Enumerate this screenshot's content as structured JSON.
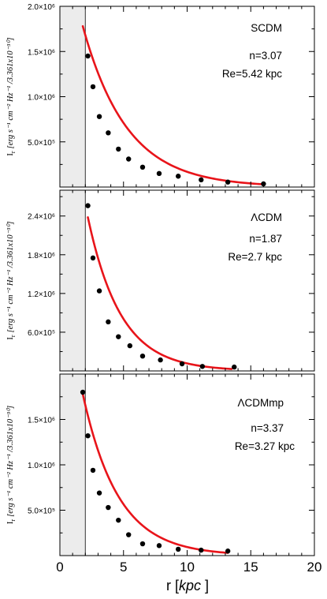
{
  "chart_data": [
    {
      "type": "scatter",
      "panel": "top",
      "model": "SCDM",
      "n_text": "n=3.07",
      "re_text": "Re=5.42 kpc",
      "ylabel_main": "I",
      "ylabel_sub": "r",
      "ylabel_units": "[erg s⁻¹ cm⁻² Hz⁻¹ /3.361x10⁻³⁰]",
      "ylim": [
        0,
        2000000
      ],
      "yticks": [
        500000,
        1000000,
        1500000,
        2000000
      ],
      "ytick_labels": [
        "5.0×10⁵",
        "1.0×10⁶",
        "1.5×10⁶",
        "2.0×10⁶"
      ],
      "xlim": [
        0,
        20
      ],
      "excluded_region": [
        0,
        2
      ],
      "points": [
        {
          "x": 2.2,
          "y": 1450000
        },
        {
          "x": 2.6,
          "y": 1110000
        },
        {
          "x": 3.1,
          "y": 780000
        },
        {
          "x": 3.8,
          "y": 600000
        },
        {
          "x": 4.6,
          "y": 420000
        },
        {
          "x": 5.4,
          "y": 310000
        },
        {
          "x": 6.5,
          "y": 220000
        },
        {
          "x": 7.8,
          "y": 150000
        },
        {
          "x": 9.3,
          "y": 120000
        },
        {
          "x": 11.1,
          "y": 80000
        },
        {
          "x": 13.2,
          "y": 55000
        },
        {
          "x": 16.0,
          "y": 35000
        }
      ],
      "fit": {
        "x_start": 1.8,
        "x_end": 16.0,
        "y_start": 1780000,
        "y_end": 30000
      }
    },
    {
      "type": "scatter",
      "panel": "middle",
      "model": "ΛCDM",
      "n_text": "n=1.87",
      "re_text": "Re=2.7 kpc",
      "ylabel_main": "I",
      "ylabel_sub": "r",
      "ylabel_units": "[erg s⁻¹ cm⁻² Hz⁻¹ /3.361x10⁻³⁰]",
      "ylim": [
        0,
        2800000
      ],
      "yticks": [
        600000,
        1200000,
        1800000,
        2400000
      ],
      "ytick_labels": [
        "6.0×10⁵",
        "1.2×10⁶",
        "1.8×10⁶",
        "2.4×10⁶"
      ],
      "xlim": [
        0,
        20
      ],
      "excluded_region": [
        0,
        2
      ],
      "points": [
        {
          "x": 2.2,
          "y": 2560000
        },
        {
          "x": 2.6,
          "y": 1750000
        },
        {
          "x": 3.1,
          "y": 1240000
        },
        {
          "x": 3.8,
          "y": 760000
        },
        {
          "x": 4.6,
          "y": 530000
        },
        {
          "x": 5.5,
          "y": 390000
        },
        {
          "x": 6.5,
          "y": 230000
        },
        {
          "x": 7.9,
          "y": 170000
        },
        {
          "x": 9.6,
          "y": 110000
        },
        {
          "x": 11.2,
          "y": 70000
        },
        {
          "x": 13.7,
          "y": 60000
        }
      ],
      "fit": {
        "x_start": 2.2,
        "x_end": 13.5,
        "y_start": 2380000,
        "y_end": 30000
      }
    },
    {
      "type": "scatter",
      "panel": "bottom",
      "model": "ΛCDMmp",
      "n_text": "n=3.37",
      "re_text": "Re=3.27 kpc",
      "ylabel_main": "I",
      "ylabel_sub": "r",
      "ylabel_units": "[erg s⁻¹ cm⁻² Hz⁻¹ /3.361x10⁻³⁰]",
      "ylim": [
        0,
        2000000
      ],
      "yticks": [
        500000,
        1000000,
        1500000
      ],
      "ytick_labels": [
        "5.0×10⁵",
        "1.0×10⁶",
        "1.5×10⁶"
      ],
      "xlim": [
        0,
        20
      ],
      "xticks": [
        0,
        5,
        10,
        15,
        20
      ],
      "xtick_labels": [
        "0",
        "5",
        "10",
        "15",
        "20"
      ],
      "xlabel": "r",
      "xlabel_unit": "kpc",
      "excluded_region": [
        0,
        2
      ],
      "points": [
        {
          "x": 1.8,
          "y": 1800000
        },
        {
          "x": 2.2,
          "y": 1320000
        },
        {
          "x": 2.6,
          "y": 940000
        },
        {
          "x": 3.1,
          "y": 690000
        },
        {
          "x": 3.8,
          "y": 530000
        },
        {
          "x": 4.6,
          "y": 390000
        },
        {
          "x": 5.4,
          "y": 230000
        },
        {
          "x": 6.5,
          "y": 130000
        },
        {
          "x": 7.8,
          "y": 110000
        },
        {
          "x": 9.3,
          "y": 70000
        },
        {
          "x": 11.1,
          "y": 60000
        },
        {
          "x": 13.2,
          "y": 50000
        }
      ],
      "fit": {
        "x_start": 1.8,
        "x_end": 13.2,
        "y_start": 1780000,
        "y_end": 30000
      }
    }
  ],
  "style": {
    "fit_color": "#e8141a",
    "point_color": "#000000",
    "shade_color": "#ececec",
    "axis_color": "#000000"
  }
}
